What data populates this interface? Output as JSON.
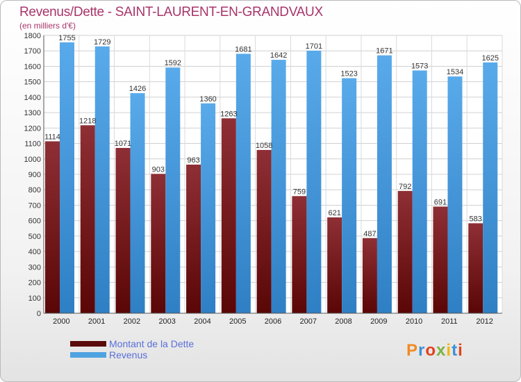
{
  "header": {
    "title": "Revenus/Dette - SAINT-LAURENT-EN-GRANDVAUX",
    "subtitle": "(en milliers d'€)"
  },
  "logo": {
    "text": "Proxiti",
    "colors": [
      "#f08a24",
      "#3d8fd6",
      "#e2421e",
      "#7cb342",
      "#f2b705",
      "#3d8fd6",
      "#e2421e"
    ]
  },
  "chart_data": {
    "type": "bar",
    "categories": [
      "2000",
      "2001",
      "2002",
      "2003",
      "2004",
      "2005",
      "2006",
      "2007",
      "2008",
      "2009",
      "2010",
      "2011",
      "2012"
    ],
    "series": [
      {
        "name": "Montant de la Dette",
        "color": "#7a1c1c",
        "values": [
          1114,
          1218,
          1071,
          903,
          963,
          1263,
          1058,
          759,
          621,
          487,
          792,
          691,
          583
        ]
      },
      {
        "name": "Revenus",
        "color": "#4fa3e0",
        "values": [
          1755,
          1729,
          1426,
          1592,
          1360,
          1681,
          1642,
          1701,
          1523,
          1671,
          1573,
          1534,
          1625
        ]
      }
    ],
    "ylim": [
      0,
      1800
    ],
    "yticks": [
      0,
      100,
      200,
      300,
      400,
      500,
      600,
      700,
      800,
      900,
      1000,
      1100,
      1200,
      1300,
      1400,
      1500,
      1600,
      1700,
      1800
    ],
    "grid": true,
    "legend_position": "bottom-left"
  }
}
